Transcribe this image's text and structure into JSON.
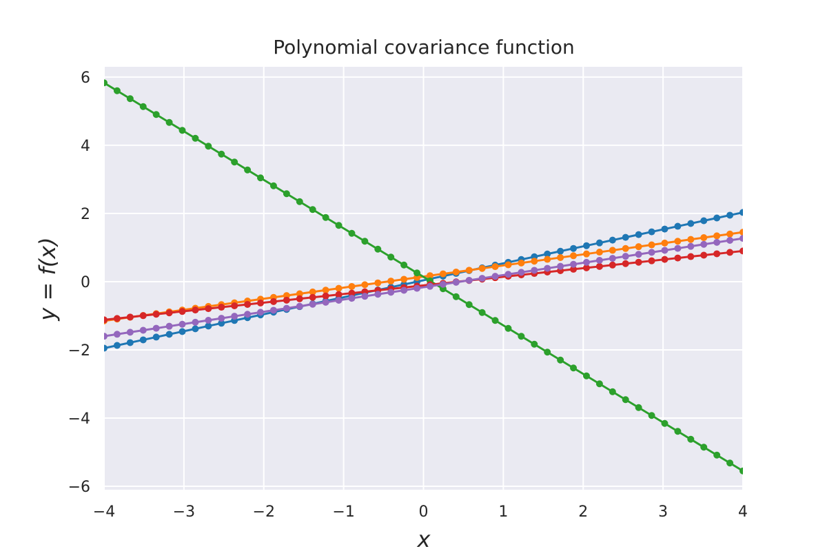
{
  "chart_data": {
    "type": "line",
    "title": "Polynomial covariance function",
    "xlabel": "x",
    "ylabel": "y = f(x)",
    "xlim": [
      -4,
      4
    ],
    "ylim": [
      -6.1,
      6.3
    ],
    "xticks": [
      -4,
      -3,
      -2,
      -1,
      0,
      1,
      2,
      3,
      4
    ],
    "xtick_labels": [
      "−4",
      "−3",
      "−2",
      "−1",
      "0",
      "1",
      "2",
      "3",
      "4"
    ],
    "yticks": [
      -6,
      -4,
      -2,
      0,
      2,
      4,
      6
    ],
    "ytick_labels": [
      "−6",
      "−4",
      "−2",
      "0",
      "2",
      "4",
      "6"
    ],
    "grid": true,
    "legend": "none",
    "background_color": "#eaeaf2",
    "grid_color": "#ffffff",
    "n_points": 50,
    "series": [
      {
        "color": "#1f77b4",
        "start": [
          -4,
          -1.95
        ],
        "end": [
          4,
          2.03
        ]
      },
      {
        "color": "#ff7f0e",
        "start": [
          -4,
          -1.15
        ],
        "end": [
          4,
          1.45
        ]
      },
      {
        "color": "#2ca02c",
        "start": [
          -4,
          5.83
        ],
        "end": [
          4,
          -5.55
        ]
      },
      {
        "color": "#d62728",
        "start": [
          -4,
          -1.12
        ],
        "end": [
          4,
          0.9
        ]
      },
      {
        "color": "#9467bd",
        "start": [
          -4,
          -1.6
        ],
        "end": [
          4,
          1.27
        ]
      }
    ]
  }
}
